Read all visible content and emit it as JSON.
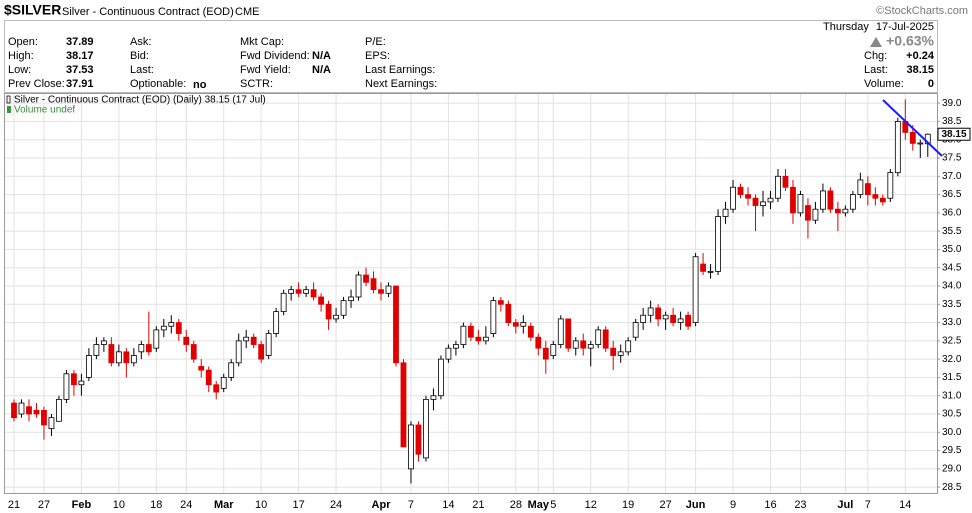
{
  "header": {
    "symbol": "$SILVER",
    "name": "Silver - Continuous Contract (EOD)",
    "exchange": "CME",
    "brand": "©StockCharts.com",
    "day": "Thursday",
    "date": "17-Jul-2025",
    "quote": {
      "open": "Open:",
      "high": "High:",
      "low": "Low:",
      "prev_close": "Prev Close:",
      "ask": "Ask:",
      "bid": "Bid:",
      "last": "Last:",
      "optionable": "Optionable:",
      "optionable_value": "no",
      "mkt_cap": "Mkt Cap:",
      "fwd_dividend": "Fwd Dividend:",
      "fwd_dividend_value": "N/A",
      "fwd_yield": "Fwd Yield:",
      "fwd_yield_value": "N/A",
      "sctr": "SCTR:",
      "pe": "P/E:",
      "eps": "EPS:",
      "last_earnings": "Last Earnings:",
      "next_earnings": "Next Earnings:",
      "change_pct": "+0.63%",
      "chg": "Chg:",
      "chg_value": "+0.24",
      "last_right": "Last:",
      "volume": "Volume:",
      "volume_value": 0
    }
  },
  "chart_data": {
    "type": "candlestick",
    "legend": "Silver - Continuous Contract (EOD) (Daily) 38.15 (17 Jul)",
    "volume_legend": "Volume undef",
    "up_color": "#ffffff",
    "down_color": "#e00000",
    "grid": true,
    "ylim": [
      28.34,
      39.25
    ],
    "yticks": [
      28.5,
      {
        "value": 29,
        "label": "29.0"
      },
      29.5,
      {
        "value": 30,
        "label": "30.0"
      },
      30.5,
      {
        "value": 31,
        "label": "31.0"
      },
      31.5,
      {
        "value": 32,
        "label": "32.0"
      },
      32.5,
      {
        "value": 33,
        "label": "33.0"
      },
      33.5,
      {
        "value": 34,
        "label": "34.0"
      },
      34.5,
      {
        "value": 35,
        "label": "35.0"
      },
      35.5,
      {
        "value": 36,
        "label": "36.0"
      },
      36.5,
      {
        "value": 37,
        "label": "37.0"
      },
      37.5,
      {
        "value": 38,
        "label": "38.0"
      },
      38.5,
      {
        "value": 39,
        "label": "39.0"
      }
    ],
    "categories": [
      "21",
      null,
      null,
      null,
      "27",
      null,
      null,
      null,
      null,
      "Feb",
      null,
      null,
      null,
      null,
      "10",
      null,
      null,
      null,
      null,
      "18",
      null,
      null,
      null,
      "24",
      null,
      null,
      null,
      null,
      "Mar",
      null,
      null,
      null,
      null,
      "10",
      null,
      null,
      null,
      null,
      "17",
      null,
      null,
      null,
      null,
      "24",
      null,
      null,
      null,
      null,
      null,
      "Apr",
      null,
      null,
      null,
      "7",
      null,
      null,
      null,
      null,
      "14",
      null,
      null,
      null,
      "21",
      null,
      null,
      null,
      null,
      "28",
      null,
      null,
      "May",
      null,
      "5",
      null,
      null,
      null,
      null,
      "12",
      null,
      null,
      null,
      null,
      "19",
      null,
      null,
      null,
      null,
      "27",
      null,
      null,
      null,
      "Jun",
      null,
      null,
      null,
      null,
      "9",
      null,
      null,
      null,
      null,
      "16",
      null,
      null,
      null,
      "23",
      null,
      null,
      null,
      null,
      null,
      "Jul",
      null,
      null,
      "7",
      null,
      null,
      null,
      null,
      "14",
      null,
      null,
      null
    ],
    "open": [
      30.8,
      30.5,
      30.7,
      30.6,
      30.6,
      30.1,
      30.3,
      30.9,
      31.6,
      31.3,
      31.5,
      32.1,
      32.4,
      32.4,
      31.9,
      32.2,
      31.9,
      32.2,
      32.4,
      32.3,
      32.8,
      32.9,
      33.0,
      32.6,
      32.4,
      31.8,
      31.7,
      31.3,
      31.2,
      31.5,
      31.9,
      32.5,
      32.6,
      32.4,
      32.1,
      32.7,
      33.3,
      33.8,
      33.9,
      33.8,
      33.9,
      33.7,
      33.5,
      33.1,
      33.2,
      33.6,
      33.7,
      34.3,
      34.2,
      33.9,
      33.8,
      34.0,
      31.9,
      29.0,
      30.2,
      29.3,
      30.9,
      31.0,
      32.0,
      32.3,
      32.4,
      32.9,
      32.6,
      32.5,
      32.7,
      33.6,
      33.5,
      33.0,
      32.9,
      32.9,
      32.6,
      32.3,
      32.1,
      32.4,
      33.1,
      32.3,
      32.5,
      32.3,
      32.4,
      32.8,
      32.3,
      32.1,
      32.2,
      32.6,
      33.0,
      33.2,
      33.4,
      33.1,
      33.2,
      33.0,
      33.2,
      33.0,
      34.6,
      34.4,
      34.4,
      35.9,
      36.1,
      36.7,
      36.5,
      36.4,
      36.2,
      36.3,
      36.4,
      37.0,
      36.7,
      36.0,
      36.2,
      35.8,
      36.1,
      36.6,
      36.1,
      36.0,
      36.1,
      36.5,
      36.8,
      36.5,
      36.4,
      36.4,
      37.1,
      38.5,
      38.2,
      37.9,
      37.89
    ],
    "high": [
      30.9,
      30.9,
      30.9,
      30.8,
      30.7,
      30.5,
      31.0,
      31.7,
      31.7,
      31.6,
      32.3,
      32.6,
      32.6,
      32.6,
      32.4,
      32.3,
      32.3,
      32.5,
      33.3,
      32.9,
      33.1,
      33.2,
      33.1,
      32.8,
      32.5,
      32.0,
      31.8,
      31.4,
      31.6,
      32.0,
      32.7,
      32.8,
      32.7,
      32.5,
      32.8,
      33.4,
      33.9,
      34.0,
      34.1,
      34.0,
      34.1,
      33.8,
      33.6,
      33.4,
      33.7,
      33.9,
      34.4,
      34.5,
      34.4,
      34.1,
      34.1,
      34.0,
      32.0,
      30.3,
      30.3,
      31.0,
      31.2,
      32.1,
      32.4,
      32.5,
      33.0,
      33.0,
      32.8,
      32.9,
      33.7,
      33.7,
      33.6,
      33.1,
      33.2,
      33.0,
      32.7,
      32.5,
      32.5,
      33.2,
      33.1,
      32.6,
      32.7,
      32.5,
      32.9,
      32.9,
      32.5,
      32.4,
      32.6,
      33.1,
      33.4,
      33.6,
      33.5,
      33.3,
      33.4,
      33.3,
      33.3,
      34.9,
      34.9,
      34.6,
      36.1,
      36.3,
      36.9,
      36.8,
      36.7,
      36.5,
      36.6,
      36.6,
      37.2,
      37.2,
      36.9,
      36.6,
      36.4,
      36.3,
      36.8,
      36.7,
      36.3,
      36.2,
      36.6,
      37.1,
      37.0,
      36.7,
      36.5,
      37.2,
      38.6,
      39.1,
      38.4,
      38.0,
      38.17
    ],
    "low": [
      30.3,
      30.4,
      30.3,
      30.4,
      29.8,
      29.9,
      30.3,
      30.8,
      31.0,
      31.0,
      31.4,
      32.0,
      32.2,
      31.8,
      31.8,
      31.5,
      31.8,
      32.0,
      32.1,
      32.2,
      32.6,
      32.7,
      32.5,
      32.2,
      31.9,
      31.5,
      31.1,
      30.9,
      31.1,
      31.4,
      31.8,
      32.3,
      32.3,
      31.9,
      32.0,
      32.6,
      33.2,
      33.6,
      33.7,
      33.7,
      33.6,
      33.3,
      32.8,
      33.0,
      33.1,
      33.4,
      33.6,
      34.0,
      33.8,
      33.6,
      33.7,
      31.8,
      29.6,
      28.6,
      29.2,
      29.2,
      30.6,
      30.9,
      31.9,
      32.1,
      32.3,
      32.5,
      32.4,
      32.4,
      32.6,
      33.3,
      32.9,
      32.7,
      32.7,
      32.5,
      32.1,
      31.6,
      32.0,
      32.3,
      32.2,
      32.1,
      32.1,
      31.8,
      32.3,
      32.2,
      31.7,
      31.9,
      32.1,
      32.5,
      32.8,
      33.0,
      32.9,
      32.8,
      32.9,
      32.8,
      32.8,
      32.9,
      34.3,
      34.2,
      34.3,
      35.7,
      36.0,
      36.4,
      36.2,
      35.5,
      35.9,
      36.1,
      36.3,
      36.6,
      35.7,
      35.9,
      35.3,
      35.7,
      36.0,
      36.0,
      35.5,
      35.9,
      36.0,
      36.4,
      36.2,
      36.2,
      36.2,
      36.3,
      37.0,
      38.0,
      37.7,
      37.5,
      37.53
    ],
    "close": [
      30.4,
      30.8,
      30.5,
      30.5,
      30.2,
      30.4,
      30.9,
      31.6,
      31.3,
      31.4,
      32.1,
      32.4,
      32.5,
      31.9,
      32.2,
      31.9,
      32.1,
      32.4,
      32.2,
      32.8,
      32.9,
      33.0,
      32.7,
      32.4,
      32.0,
      31.7,
      31.3,
      31.1,
      31.5,
      31.9,
      32.5,
      32.6,
      32.4,
      32.0,
      32.7,
      33.3,
      33.8,
      33.9,
      33.8,
      33.9,
      33.7,
      33.5,
      33.1,
      33.2,
      33.6,
      33.7,
      34.3,
      34.1,
      33.9,
      33.8,
      34.0,
      31.9,
      29.6,
      30.2,
      29.4,
      30.9,
      31.0,
      32.0,
      32.3,
      32.4,
      32.9,
      32.6,
      32.5,
      32.6,
      33.6,
      33.5,
      33.0,
      32.9,
      33.0,
      32.6,
      32.3,
      32.0,
      32.4,
      33.1,
      32.3,
      32.5,
      32.3,
      32.4,
      32.8,
      32.3,
      32.1,
      32.2,
      32.5,
      33.0,
      33.2,
      33.4,
      33.1,
      33.2,
      33.0,
      33.1,
      32.9,
      34.8,
      34.4,
      34.4,
      35.9,
      36.1,
      36.7,
      36.5,
      36.4,
      36.2,
      36.3,
      36.4,
      37.0,
      36.7,
      36.0,
      36.5,
      35.8,
      36.1,
      36.6,
      36.1,
      36.0,
      36.1,
      36.5,
      36.9,
      36.5,
      36.4,
      36.3,
      37.1,
      38.5,
      38.2,
      37.9,
      37.91,
      38.15
    ]
  }
}
